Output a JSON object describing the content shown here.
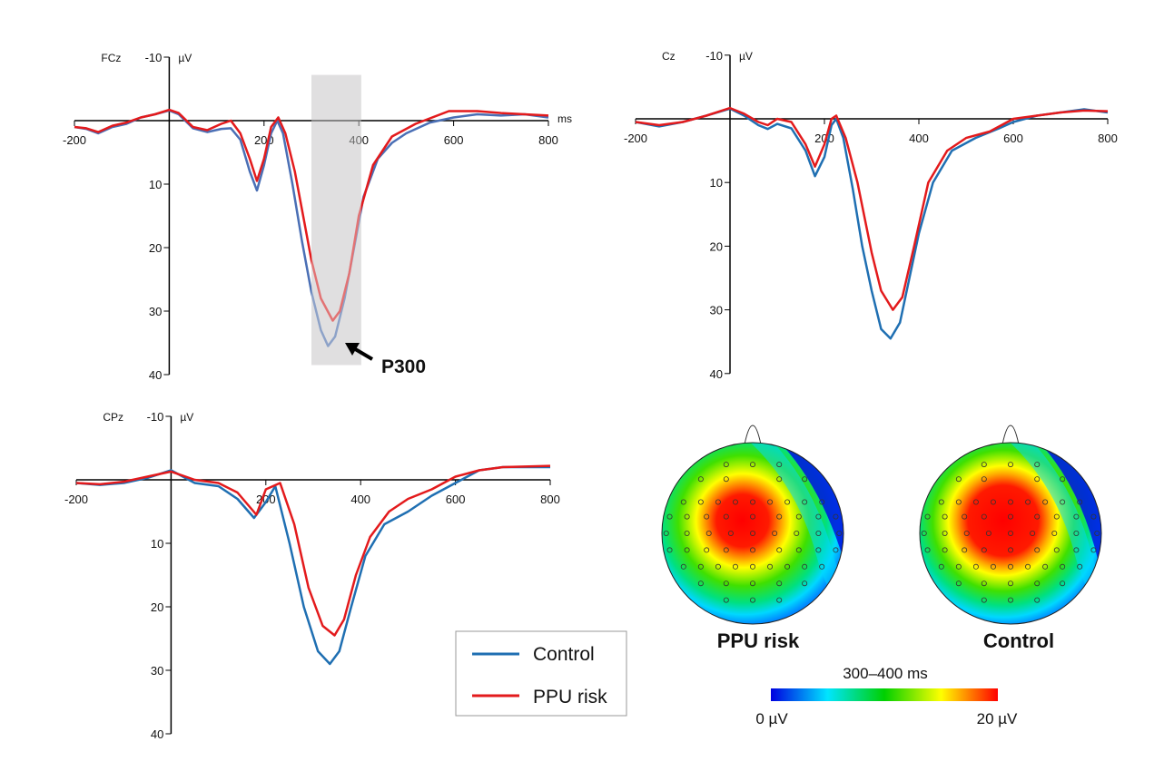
{
  "chart_data": [
    {
      "type": "line",
      "panel_label": "FCz",
      "ylabel": "µV",
      "xlabel": "ms",
      "xlim": [
        -200,
        800
      ],
      "ylim": [
        -10,
        40
      ],
      "y_inverted": true,
      "xticks": [
        -200,
        200,
        400,
        600,
        800
      ],
      "yticks": [
        -10,
        10,
        20,
        30,
        40
      ],
      "highlight_window": [
        300,
        405
      ],
      "annotation": "P300",
      "series": [
        {
          "name": "Control",
          "color": "#4a6fb5",
          "points": [
            [
              -200,
              1
            ],
            [
              -175,
              1.3
            ],
            [
              -150,
              2
            ],
            [
              -120,
              1
            ],
            [
              -90,
              0.5
            ],
            [
              -60,
              -0.5
            ],
            [
              -30,
              -1
            ],
            [
              0,
              -1.6
            ],
            [
              20,
              -1
            ],
            [
              50,
              1.2
            ],
            [
              80,
              1.8
            ],
            [
              110,
              1.3
            ],
            [
              130,
              1.2
            ],
            [
              150,
              3
            ],
            [
              170,
              8
            ],
            [
              185,
              11
            ],
            [
              200,
              7
            ],
            [
              215,
              2
            ],
            [
              228,
              0
            ],
            [
              240,
              2
            ],
            [
              260,
              10
            ],
            [
              280,
              19
            ],
            [
              300,
              27
            ],
            [
              320,
              33
            ],
            [
              335,
              35.5
            ],
            [
              350,
              34
            ],
            [
              370,
              28
            ],
            [
              390,
              20
            ],
            [
              410,
              12
            ],
            [
              440,
              6
            ],
            [
              470,
              3.5
            ],
            [
              500,
              2
            ],
            [
              550,
              0.3
            ],
            [
              600,
              -0.5
            ],
            [
              650,
              -1
            ],
            [
              700,
              -0.8
            ],
            [
              750,
              -1
            ],
            [
              800,
              -0.5
            ]
          ]
        },
        {
          "name": "PPU risk",
          "color": "#e31a1c",
          "points": [
            [
              -200,
              1
            ],
            [
              -175,
              1.2
            ],
            [
              -150,
              1.8
            ],
            [
              -120,
              0.8
            ],
            [
              -90,
              0.3
            ],
            [
              -60,
              -0.5
            ],
            [
              -30,
              -1
            ],
            [
              0,
              -1.7
            ],
            [
              20,
              -1.2
            ],
            [
              50,
              1
            ],
            [
              80,
              1.5
            ],
            [
              110,
              0.5
            ],
            [
              130,
              0
            ],
            [
              150,
              2
            ],
            [
              170,
              6
            ],
            [
              185,
              9.5
            ],
            [
              200,
              6
            ],
            [
              215,
              1
            ],
            [
              230,
              -0.5
            ],
            [
              245,
              2
            ],
            [
              265,
              8
            ],
            [
              285,
              16
            ],
            [
              300,
              22
            ],
            [
              320,
              28
            ],
            [
              345,
              31.5
            ],
            [
              360,
              30
            ],
            [
              380,
              24
            ],
            [
              400,
              15
            ],
            [
              430,
              7
            ],
            [
              470,
              2.5
            ],
            [
              520,
              0.5
            ],
            [
              590,
              -1.5
            ],
            [
              650,
              -1.5
            ],
            [
              700,
              -1.2
            ],
            [
              750,
              -1
            ],
            [
              800,
              -0.8
            ]
          ]
        }
      ]
    },
    {
      "type": "line",
      "panel_label": "Cz",
      "ylabel": "µV",
      "xlim": [
        -200,
        800
      ],
      "ylim": [
        -10,
        40
      ],
      "y_inverted": true,
      "xticks": [
        -200,
        200,
        400,
        600,
        800
      ],
      "yticks": [
        -10,
        10,
        20,
        30,
        40
      ],
      "series": [
        {
          "name": "Control",
          "color": "#1f6fb2",
          "points": [
            [
              -200,
              0.5
            ],
            [
              -150,
              1.2
            ],
            [
              -100,
              0.5
            ],
            [
              -50,
              -0.5
            ],
            [
              0,
              -1.6
            ],
            [
              30,
              -0.5
            ],
            [
              60,
              1
            ],
            [
              80,
              1.6
            ],
            [
              100,
              0.8
            ],
            [
              130,
              1.5
            ],
            [
              160,
              5
            ],
            [
              180,
              9
            ],
            [
              200,
              6
            ],
            [
              215,
              1
            ],
            [
              225,
              0
            ],
            [
              240,
              3
            ],
            [
              260,
              11
            ],
            [
              280,
              20
            ],
            [
              300,
              27
            ],
            [
              320,
              33
            ],
            [
              340,
              34.5
            ],
            [
              360,
              32
            ],
            [
              380,
              25
            ],
            [
              400,
              18
            ],
            [
              430,
              10
            ],
            [
              470,
              5
            ],
            [
              520,
              3
            ],
            [
              570,
              1.5
            ],
            [
              600,
              0.5
            ],
            [
              650,
              -0.5
            ],
            [
              700,
              -1
            ],
            [
              750,
              -1.5
            ],
            [
              800,
              -1
            ]
          ]
        },
        {
          "name": "PPU risk",
          "color": "#e31a1c",
          "points": [
            [
              -200,
              0.5
            ],
            [
              -150,
              1
            ],
            [
              -100,
              0.5
            ],
            [
              -50,
              -0.5
            ],
            [
              0,
              -1.7
            ],
            [
              30,
              -0.8
            ],
            [
              60,
              0.5
            ],
            [
              80,
              1
            ],
            [
              100,
              0
            ],
            [
              130,
              0.5
            ],
            [
              160,
              4
            ],
            [
              180,
              7.5
            ],
            [
              200,
              4
            ],
            [
              215,
              0
            ],
            [
              225,
              -0.5
            ],
            [
              245,
              3
            ],
            [
              270,
              10
            ],
            [
              300,
              21
            ],
            [
              320,
              27
            ],
            [
              345,
              30
            ],
            [
              365,
              28
            ],
            [
              390,
              20
            ],
            [
              420,
              10
            ],
            [
              460,
              5
            ],
            [
              500,
              3
            ],
            [
              550,
              2
            ],
            [
              600,
              0
            ],
            [
              650,
              -0.5
            ],
            [
              700,
              -1
            ],
            [
              750,
              -1.3
            ],
            [
              800,
              -1.2
            ]
          ]
        }
      ]
    },
    {
      "type": "line",
      "panel_label": "CPz",
      "ylabel": "µV",
      "xlim": [
        -200,
        800
      ],
      "ylim": [
        -10,
        40
      ],
      "y_inverted": true,
      "xticks": [
        -200,
        200,
        400,
        600,
        800
      ],
      "yticks": [
        -10,
        10,
        20,
        30,
        40
      ],
      "series": [
        {
          "name": "Control",
          "color": "#1f6fb2",
          "points": [
            [
              -200,
              0.5
            ],
            [
              -150,
              0.8
            ],
            [
              -100,
              0.5
            ],
            [
              -50,
              -0.3
            ],
            [
              0,
              -1.5
            ],
            [
              50,
              0.5
            ],
            [
              100,
              1
            ],
            [
              140,
              3
            ],
            [
              175,
              6
            ],
            [
              200,
              3.5
            ],
            [
              220,
              1
            ],
            [
              250,
              10
            ],
            [
              280,
              20
            ],
            [
              310,
              27
            ],
            [
              335,
              29
            ],
            [
              355,
              27
            ],
            [
              380,
              20
            ],
            [
              410,
              12
            ],
            [
              450,
              7
            ],
            [
              500,
              5
            ],
            [
              550,
              2.5
            ],
            [
              600,
              0.5
            ],
            [
              650,
              -1.5
            ],
            [
              700,
              -2
            ],
            [
              800,
              -2
            ]
          ]
        },
        {
          "name": "PPU risk",
          "color": "#e31a1c",
          "points": [
            [
              -200,
              0.5
            ],
            [
              -150,
              0.7
            ],
            [
              -100,
              0.3
            ],
            [
              -50,
              -0.5
            ],
            [
              0,
              -1.3
            ],
            [
              50,
              0
            ],
            [
              100,
              0.5
            ],
            [
              140,
              2
            ],
            [
              180,
              5.5
            ],
            [
              200,
              1.5
            ],
            [
              230,
              0.5
            ],
            [
              260,
              7
            ],
            [
              290,
              17
            ],
            [
              320,
              23
            ],
            [
              345,
              24.5
            ],
            [
              365,
              22
            ],
            [
              390,
              15
            ],
            [
              420,
              9
            ],
            [
              460,
              5
            ],
            [
              500,
              3
            ],
            [
              550,
              1.5
            ],
            [
              600,
              -0.5
            ],
            [
              650,
              -1.5
            ],
            [
              700,
              -2
            ],
            [
              800,
              -2.2
            ]
          ]
        }
      ]
    }
  ],
  "legend": {
    "items": [
      {
        "label": "Control",
        "color": "#1f6fb2"
      },
      {
        "label": "PPU risk",
        "color": "#e31a1c"
      }
    ]
  },
  "topomaps": {
    "window_label": "300–400 ms",
    "maps": [
      {
        "label": "PPU risk"
      },
      {
        "label": "Control"
      }
    ],
    "colorbar": {
      "min_label": "0 µV",
      "max_label": "20 µV",
      "min": 0,
      "max": 20,
      "colors": [
        "#0000e0",
        "#00e5ff",
        "#00d000",
        "#ffff00",
        "#ff0000"
      ]
    }
  }
}
